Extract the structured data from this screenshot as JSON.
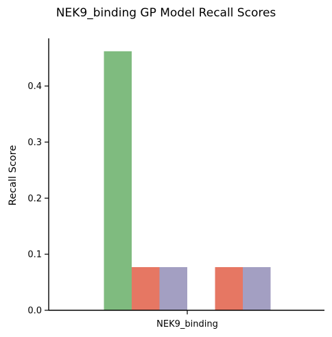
{
  "chart_data": {
    "type": "bar",
    "title": "NEK9_binding GP Model Recall Scores",
    "xlabel": "",
    "ylabel": "Recall Score",
    "categories": [
      "NEK9_binding"
    ],
    "group_labels": [
      "NEK9_binding"
    ],
    "ylim": [
      0.0,
      0.485
    ],
    "yticks": [
      0.0,
      0.1,
      0.2,
      0.3,
      0.4
    ],
    "ytick_labels": [
      "0.0",
      "0.1",
      "0.2",
      "0.3",
      "0.4"
    ],
    "grid": false,
    "legend": "none",
    "bars": [
      {
        "group": 0,
        "slot": 1,
        "value": 0.462,
        "color": "#7fbb7f"
      },
      {
        "group": 0,
        "slot": 2,
        "value": 0.077,
        "color": "#e67763"
      },
      {
        "group": 0,
        "slot": 3,
        "value": 0.077,
        "color": "#a39fc2"
      },
      {
        "group": 0,
        "slot": 4,
        "value": 0.0,
        "color": "#7fbb7f"
      },
      {
        "group": 0,
        "slot": 5,
        "value": 0.077,
        "color": "#e67763"
      },
      {
        "group": 0,
        "slot": 6,
        "value": 0.077,
        "color": "#a39fc2"
      }
    ],
    "slot_count": 8
  }
}
